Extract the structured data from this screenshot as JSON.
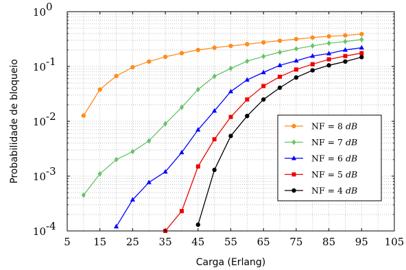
{
  "chart_data": {
    "type": "line",
    "xlabel": "Carga (Erlang)",
    "ylabel": "Probabilidade de bloqueio",
    "xlim": [
      5,
      105
    ],
    "ylim": [
      0.0001,
      1
    ],
    "y_scale": "log",
    "x_ticks": [
      5,
      15,
      25,
      35,
      45,
      55,
      65,
      75,
      85,
      95,
      105
    ],
    "y_ticks": [
      {
        "value": 0.0001,
        "base": "10",
        "exp": "-4"
      },
      {
        "value": 0.001,
        "base": "10",
        "exp": "-3"
      },
      {
        "value": 0.01,
        "base": "10",
        "exp": "-2"
      },
      {
        "value": 0.1,
        "base": "10",
        "exp": "-1"
      },
      {
        "value": 1,
        "base": "10",
        "exp": "0"
      }
    ],
    "grid": true,
    "legend_position": "center-right",
    "series": [
      {
        "name": "NF = 8 dB",
        "label_prefix": "NF = 8 ",
        "label_unit": "dB",
        "color": "#ff8c1a",
        "marker": "circle",
        "x": [
          10,
          15,
          20,
          25,
          30,
          35,
          40,
          45,
          50,
          55,
          60,
          65,
          70,
          75,
          80,
          85,
          90,
          95
        ],
        "y": [
          0.0127,
          0.038,
          0.067,
          0.097,
          0.123,
          0.15,
          0.175,
          0.2,
          0.22,
          0.237,
          0.255,
          0.275,
          0.295,
          0.315,
          0.337,
          0.355,
          0.368,
          0.39
        ]
      },
      {
        "name": "NF = 7 dB",
        "label_prefix": "NF = 7 ",
        "label_unit": "dB",
        "color": "#66c266",
        "marker": "diamond",
        "x": [
          10,
          15,
          20,
          25,
          30,
          35,
          40,
          45,
          50,
          55,
          60,
          65,
          70,
          75,
          80,
          85,
          90,
          95
        ],
        "y": [
          0.00045,
          0.0011,
          0.002,
          0.0028,
          0.0044,
          0.009,
          0.018,
          0.038,
          0.066,
          0.092,
          0.125,
          0.153,
          0.182,
          0.21,
          0.238,
          0.265,
          0.285,
          0.31
        ]
      },
      {
        "name": "NF = 6 dB",
        "label_prefix": "NF = 6 ",
        "label_unit": "dB",
        "color": "#0000ff",
        "marker": "triangle",
        "x": [
          20,
          25,
          30,
          35,
          40,
          45,
          50,
          55,
          60,
          65,
          70,
          75,
          80,
          85,
          90,
          95
        ],
        "y": [
          0.00012,
          0.00037,
          0.00077,
          0.0012,
          0.0027,
          0.007,
          0.0155,
          0.035,
          0.057,
          0.078,
          0.105,
          0.127,
          0.155,
          0.172,
          0.2,
          0.22
        ]
      },
      {
        "name": "NF = 5 dB",
        "label_prefix": "NF = 5 ",
        "label_unit": "dB",
        "color": "#ee0000",
        "marker": "square",
        "x": [
          35,
          40,
          45,
          50,
          55,
          60,
          65,
          70,
          75,
          80,
          85,
          90,
          95
        ],
        "y": [
          0.0001,
          0.00023,
          0.0015,
          0.0047,
          0.012,
          0.025,
          0.044,
          0.065,
          0.088,
          0.11,
          0.135,
          0.155,
          0.175
        ]
      },
      {
        "name": "NF = 4 dB",
        "label_prefix": "NF = 4 ",
        "label_unit": "dB",
        "color": "#000000",
        "marker": "circle",
        "x": [
          45,
          50,
          55,
          60,
          65,
          70,
          75,
          80,
          85,
          90,
          95
        ],
        "y": [
          0.00013,
          0.0013,
          0.0054,
          0.0125,
          0.025,
          0.041,
          0.063,
          0.085,
          0.105,
          0.123,
          0.148
        ]
      }
    ]
  }
}
